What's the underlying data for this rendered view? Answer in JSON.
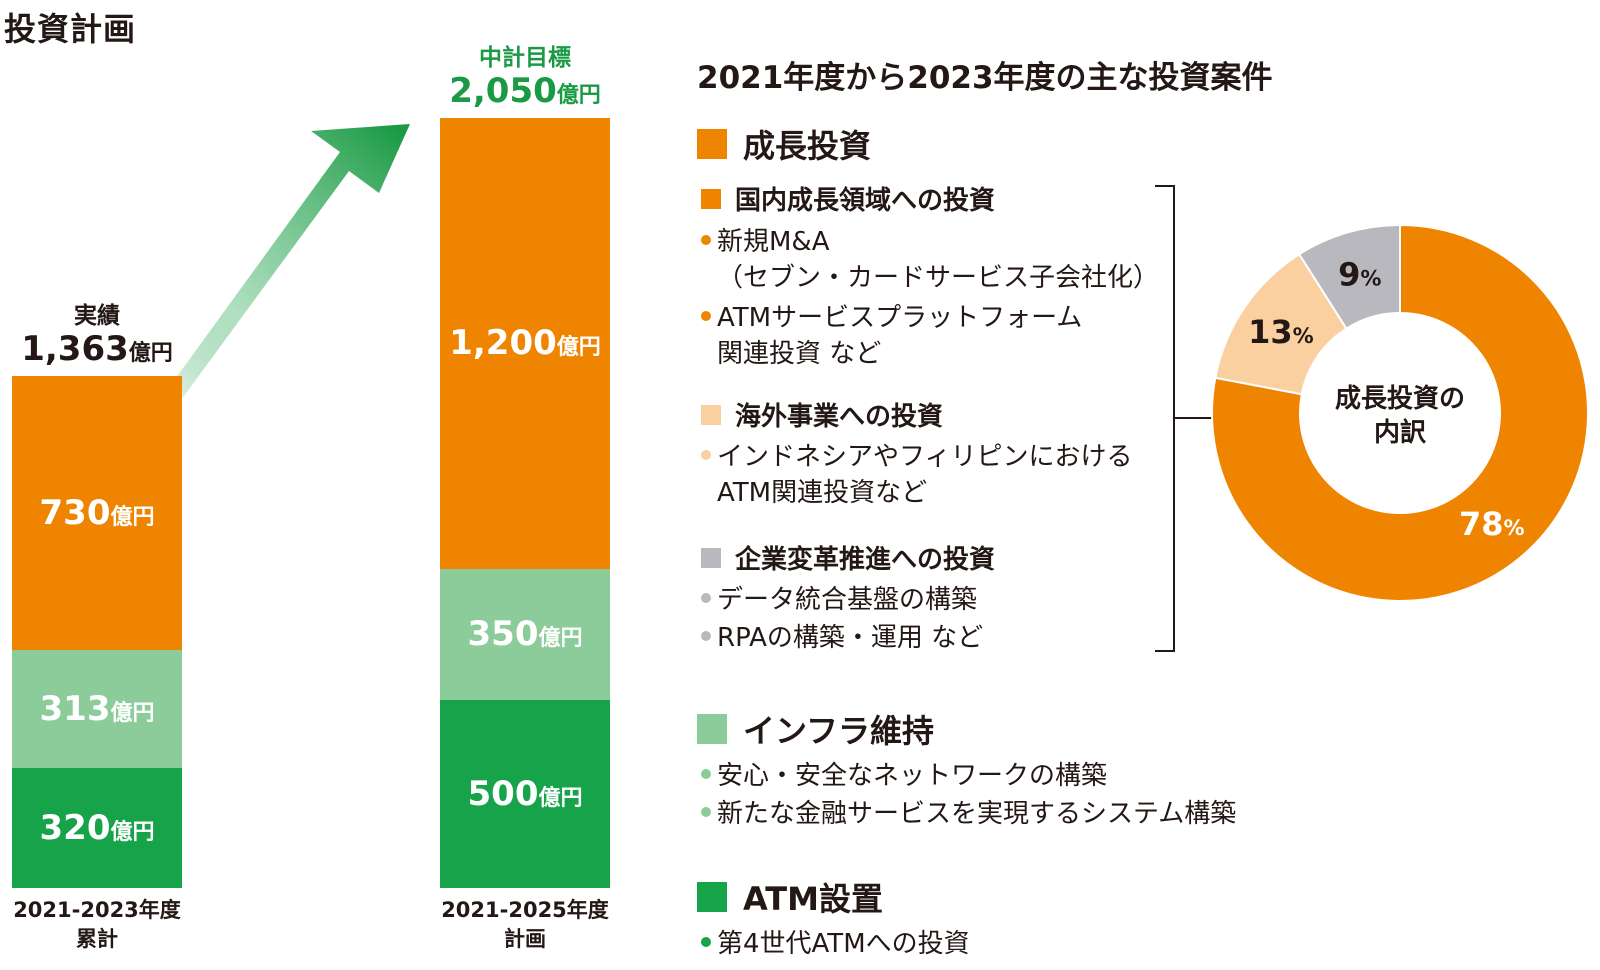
{
  "title": "投資計画",
  "unit": "億円",
  "colors": {
    "orange": "#ee8400",
    "light_green": "#8ccb9a",
    "dark_green": "#16a34a",
    "light_orange": "#fbd0a0",
    "gray": "#b8b8be",
    "arrow_green": "#1a9a44",
    "target_green": "#1a9a44"
  },
  "chart_data": [
    {
      "type": "bar",
      "stacked": true,
      "categories": [
        "2021-2023年度 累計",
        "2021-2025年度 計画"
      ],
      "category_lines": [
        [
          "2021-2023年度",
          "累計"
        ],
        [
          "2021-2025年度",
          "計画"
        ]
      ],
      "series": [
        {
          "key": "atm",
          "values": [
            320,
            500
          ],
          "labels": [
            "320",
            "500"
          ]
        },
        {
          "key": "infra",
          "values": [
            313,
            350
          ],
          "labels": [
            "313",
            "350"
          ]
        },
        {
          "key": "growth",
          "values": [
            730,
            1200
          ],
          "labels": [
            "730",
            "1,200"
          ]
        }
      ],
      "totals": [
        {
          "caption": "実績",
          "value": "1,363",
          "unit": "億円"
        },
        {
          "caption": "中計目標",
          "value": "2,050",
          "unit": "億円"
        }
      ]
    },
    {
      "type": "pie",
      "donut": true,
      "center_label_lines": [
        "成長投資の",
        "内訳"
      ],
      "slices": [
        {
          "key": "domestic",
          "value": 78,
          "label": "78"
        },
        {
          "key": "overseas",
          "value": 13,
          "label": "13"
        },
        {
          "key": "transformation",
          "value": 9,
          "label": "9"
        }
      ],
      "percent_sign": "%"
    }
  ],
  "list": {
    "title": "2021年度から2023年度の主な投資案件",
    "growth": {
      "heading": "成長投資",
      "domestic": {
        "heading": "国内成長領域への投資",
        "items": [
          [
            "新規M&A",
            "（セブン・カードサービス子会社化）"
          ],
          [
            "ATMサービスプラットフォーム",
            "関連投資 など"
          ]
        ]
      },
      "overseas": {
        "heading": "海外事業への投資",
        "items": [
          [
            "インドネシアやフィリピンにおける",
            "ATM関連投資など"
          ]
        ]
      },
      "transformation": {
        "heading": "企業変革推進への投資",
        "items": [
          [
            "データ統合基盤の構築"
          ],
          [
            "RPAの構築・運用 など"
          ]
        ]
      }
    },
    "infra": {
      "heading": "インフラ維持",
      "items": [
        [
          "安心・安全なネットワークの構築"
        ],
        [
          "新たな金融サービスを実現するシステム構築"
        ]
      ]
    },
    "atm": {
      "heading": "ATM設置",
      "items": [
        [
          "第4世代ATMへの投資"
        ]
      ]
    }
  }
}
